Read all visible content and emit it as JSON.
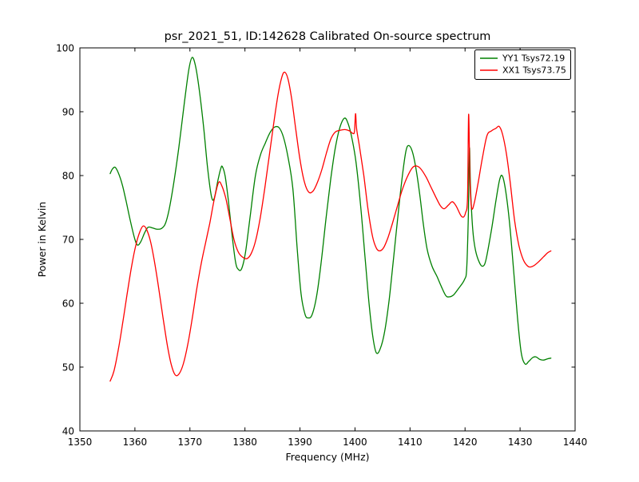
{
  "chart_data": {
    "type": "line",
    "title": "psr_2021_51, ID:142628 Calibrated On-source spectrum",
    "xlabel": "Frequency (MHz)",
    "ylabel": "Power in Kelvin",
    "xlim": [
      1350,
      1440
    ],
    "ylim": [
      40,
      100
    ],
    "xticks": [
      1350,
      1360,
      1370,
      1380,
      1390,
      1400,
      1410,
      1420,
      1430,
      1440
    ],
    "yticks": [
      40,
      50,
      60,
      70,
      80,
      90,
      100
    ],
    "grid": false,
    "legend_position": "upper right",
    "background_color": "#ffffff",
    "series": [
      {
        "name": "YY1 Tsys72.19",
        "color": "#008000",
        "points": [
          [
            1355.5,
            80.3
          ],
          [
            1355.9,
            81.0
          ],
          [
            1356.4,
            81.3
          ],
          [
            1357.0,
            80.4
          ],
          [
            1357.7,
            78.6
          ],
          [
            1358.4,
            76.0
          ],
          [
            1359.2,
            72.8
          ],
          [
            1360.0,
            70.0
          ],
          [
            1360.5,
            69.1
          ],
          [
            1361.1,
            69.7
          ],
          [
            1361.8,
            71.1
          ],
          [
            1362.4,
            71.9
          ],
          [
            1363.2,
            71.8
          ],
          [
            1364.0,
            71.6
          ],
          [
            1364.8,
            71.7
          ],
          [
            1365.5,
            72.4
          ],
          [
            1366.2,
            74.6
          ],
          [
            1367.0,
            78.5
          ],
          [
            1368.0,
            84.5
          ],
          [
            1369.0,
            91.5
          ],
          [
            1369.8,
            96.6
          ],
          [
            1370.4,
            98.5
          ],
          [
            1371.0,
            97.2
          ],
          [
            1371.7,
            93.4
          ],
          [
            1372.5,
            87.5
          ],
          [
            1373.2,
            81.3
          ],
          [
            1373.9,
            76.8
          ],
          [
            1374.4,
            76.4
          ],
          [
            1375.1,
            79.3
          ],
          [
            1375.6,
            81.1
          ],
          [
            1375.9,
            81.4
          ],
          [
            1376.4,
            79.9
          ],
          [
            1377.0,
            76.0
          ],
          [
            1377.7,
            70.4
          ],
          [
            1378.3,
            66.4
          ],
          [
            1378.8,
            65.3
          ],
          [
            1379.4,
            65.4
          ],
          [
            1380.1,
            68.0
          ],
          [
            1381.0,
            74.0
          ],
          [
            1381.9,
            80.0
          ],
          [
            1382.8,
            83.2
          ],
          [
            1383.7,
            85.1
          ],
          [
            1384.6,
            86.8
          ],
          [
            1385.4,
            87.6
          ],
          [
            1386.2,
            87.5
          ],
          [
            1387.0,
            86.0
          ],
          [
            1387.8,
            83.0
          ],
          [
            1388.7,
            78.0
          ],
          [
            1389.5,
            68.5
          ],
          [
            1390.2,
            61.5
          ],
          [
            1390.9,
            58.3
          ],
          [
            1391.5,
            57.7
          ],
          [
            1392.2,
            58.2
          ],
          [
            1393.0,
            61.0
          ],
          [
            1393.8,
            66.0
          ],
          [
            1394.7,
            73.0
          ],
          [
            1395.6,
            79.5
          ],
          [
            1396.4,
            84.2
          ],
          [
            1397.2,
            87.4
          ],
          [
            1398.1,
            89.0
          ],
          [
            1398.8,
            88.0
          ],
          [
            1399.5,
            85.6
          ],
          [
            1400.2,
            82.0
          ],
          [
            1401.0,
            75.5
          ],
          [
            1401.8,
            67.5
          ],
          [
            1402.6,
            59.5
          ],
          [
            1403.3,
            54.4
          ],
          [
            1403.9,
            52.2
          ],
          [
            1404.6,
            52.9
          ],
          [
            1405.4,
            55.6
          ],
          [
            1406.2,
            60.5
          ],
          [
            1407.0,
            67.0
          ],
          [
            1407.9,
            74.5
          ],
          [
            1408.7,
            80.6
          ],
          [
            1409.3,
            84.0
          ],
          [
            1409.8,
            84.7
          ],
          [
            1410.4,
            83.8
          ],
          [
            1411.0,
            81.5
          ],
          [
            1411.7,
            77.5
          ],
          [
            1412.4,
            72.5
          ],
          [
            1413.1,
            68.5
          ],
          [
            1414.0,
            65.8
          ],
          [
            1414.9,
            64.2
          ],
          [
            1415.7,
            62.6
          ],
          [
            1416.5,
            61.2
          ],
          [
            1417.1,
            61.0
          ],
          [
            1417.9,
            61.3
          ],
          [
            1418.8,
            62.3
          ],
          [
            1419.9,
            63.7
          ],
          [
            1420.3,
            65.5
          ],
          [
            1420.6,
            74.0
          ],
          [
            1420.8,
            84.3
          ],
          [
            1421.0,
            78.0
          ],
          [
            1421.4,
            71.5
          ],
          [
            1421.9,
            68.3
          ],
          [
            1422.6,
            66.4
          ],
          [
            1423.2,
            65.8
          ],
          [
            1423.8,
            66.8
          ],
          [
            1424.8,
            71.5
          ],
          [
            1425.6,
            76.0
          ],
          [
            1426.3,
            79.4
          ],
          [
            1426.8,
            79.9
          ],
          [
            1427.4,
            77.5
          ],
          [
            1428.1,
            72.5
          ],
          [
            1428.8,
            65.5
          ],
          [
            1429.5,
            58.0
          ],
          [
            1430.2,
            52.3
          ],
          [
            1430.9,
            50.5
          ],
          [
            1431.6,
            50.9
          ],
          [
            1432.3,
            51.5
          ],
          [
            1432.9,
            51.6
          ],
          [
            1433.6,
            51.2
          ],
          [
            1434.3,
            51.1
          ],
          [
            1435.0,
            51.3
          ],
          [
            1435.6,
            51.4
          ]
        ]
      },
      {
        "name": "XX1 Tsys73.75",
        "color": "#ff0000",
        "points": [
          [
            1355.5,
            47.8
          ],
          [
            1356.2,
            49.4
          ],
          [
            1357.0,
            52.8
          ],
          [
            1357.8,
            57.0
          ],
          [
            1358.6,
            61.5
          ],
          [
            1359.4,
            65.8
          ],
          [
            1360.2,
            69.2
          ],
          [
            1360.9,
            71.2
          ],
          [
            1361.5,
            72.1
          ],
          [
            1362.1,
            71.6
          ],
          [
            1362.8,
            69.8
          ],
          [
            1363.5,
            66.8
          ],
          [
            1364.3,
            62.5
          ],
          [
            1365.1,
            57.8
          ],
          [
            1365.9,
            53.4
          ],
          [
            1366.6,
            50.4
          ],
          [
            1367.3,
            48.8
          ],
          [
            1368.0,
            48.9
          ],
          [
            1368.8,
            50.5
          ],
          [
            1369.6,
            53.5
          ],
          [
            1370.4,
            57.5
          ],
          [
            1371.2,
            62.0
          ],
          [
            1372.0,
            66.0
          ],
          [
            1372.8,
            69.3
          ],
          [
            1373.6,
            72.5
          ],
          [
            1374.4,
            76.2
          ],
          [
            1375.2,
            78.9
          ],
          [
            1375.8,
            78.4
          ],
          [
            1376.5,
            76.5
          ],
          [
            1377.2,
            73.5
          ],
          [
            1378.0,
            70.0
          ],
          [
            1378.8,
            68.0
          ],
          [
            1379.6,
            67.2
          ],
          [
            1380.4,
            67.0
          ],
          [
            1381.2,
            67.9
          ],
          [
            1382.0,
            70.0
          ],
          [
            1382.8,
            73.5
          ],
          [
            1383.6,
            78.0
          ],
          [
            1384.4,
            83.0
          ],
          [
            1385.2,
            88.0
          ],
          [
            1386.0,
            92.6
          ],
          [
            1386.7,
            95.4
          ],
          [
            1387.2,
            96.2
          ],
          [
            1387.8,
            95.2
          ],
          [
            1388.5,
            92.0
          ],
          [
            1389.2,
            87.5
          ],
          [
            1390.0,
            82.5
          ],
          [
            1390.8,
            79.0
          ],
          [
            1391.6,
            77.4
          ],
          [
            1392.4,
            77.6
          ],
          [
            1393.2,
            79.0
          ],
          [
            1394.0,
            81.0
          ],
          [
            1394.8,
            83.5
          ],
          [
            1395.6,
            85.7
          ],
          [
            1396.4,
            86.8
          ],
          [
            1397.3,
            87.1
          ],
          [
            1398.2,
            87.2
          ],
          [
            1399.0,
            87.0
          ],
          [
            1399.6,
            86.6
          ],
          [
            1399.9,
            86.9
          ],
          [
            1400.1,
            89.7
          ],
          [
            1400.3,
            87.3
          ],
          [
            1400.8,
            84.6
          ],
          [
            1401.6,
            80.0
          ],
          [
            1402.4,
            74.5
          ],
          [
            1403.2,
            70.4
          ],
          [
            1403.9,
            68.6
          ],
          [
            1404.5,
            68.2
          ],
          [
            1405.2,
            68.7
          ],
          [
            1406.0,
            70.3
          ],
          [
            1406.8,
            72.5
          ],
          [
            1407.7,
            75.2
          ],
          [
            1408.6,
            77.8
          ],
          [
            1409.5,
            79.8
          ],
          [
            1410.4,
            81.2
          ],
          [
            1411.2,
            81.5
          ],
          [
            1412.0,
            81.0
          ],
          [
            1412.9,
            79.8
          ],
          [
            1413.8,
            78.2
          ],
          [
            1414.7,
            76.6
          ],
          [
            1415.5,
            75.3
          ],
          [
            1416.2,
            74.8
          ],
          [
            1417.0,
            75.4
          ],
          [
            1417.7,
            75.9
          ],
          [
            1418.4,
            75.2
          ],
          [
            1419.2,
            73.8
          ],
          [
            1419.7,
            73.5
          ],
          [
            1420.1,
            74.2
          ],
          [
            1420.45,
            76.5
          ],
          [
            1420.65,
            89.6
          ],
          [
            1420.9,
            79.0
          ],
          [
            1421.2,
            74.9
          ],
          [
            1421.7,
            75.8
          ],
          [
            1422.4,
            79.0
          ],
          [
            1423.2,
            83.0
          ],
          [
            1424.0,
            86.3
          ],
          [
            1424.8,
            87.0
          ],
          [
            1425.6,
            87.4
          ],
          [
            1426.2,
            87.7
          ],
          [
            1426.8,
            86.5
          ],
          [
            1427.5,
            83.5
          ],
          [
            1428.2,
            79.0
          ],
          [
            1429.0,
            73.0
          ],
          [
            1429.8,
            69.0
          ],
          [
            1430.6,
            66.8
          ],
          [
            1431.4,
            65.8
          ],
          [
            1432.0,
            65.7
          ],
          [
            1432.7,
            66.0
          ],
          [
            1433.5,
            66.6
          ],
          [
            1434.3,
            67.3
          ],
          [
            1435.0,
            67.9
          ],
          [
            1435.6,
            68.2
          ]
        ]
      }
    ]
  }
}
